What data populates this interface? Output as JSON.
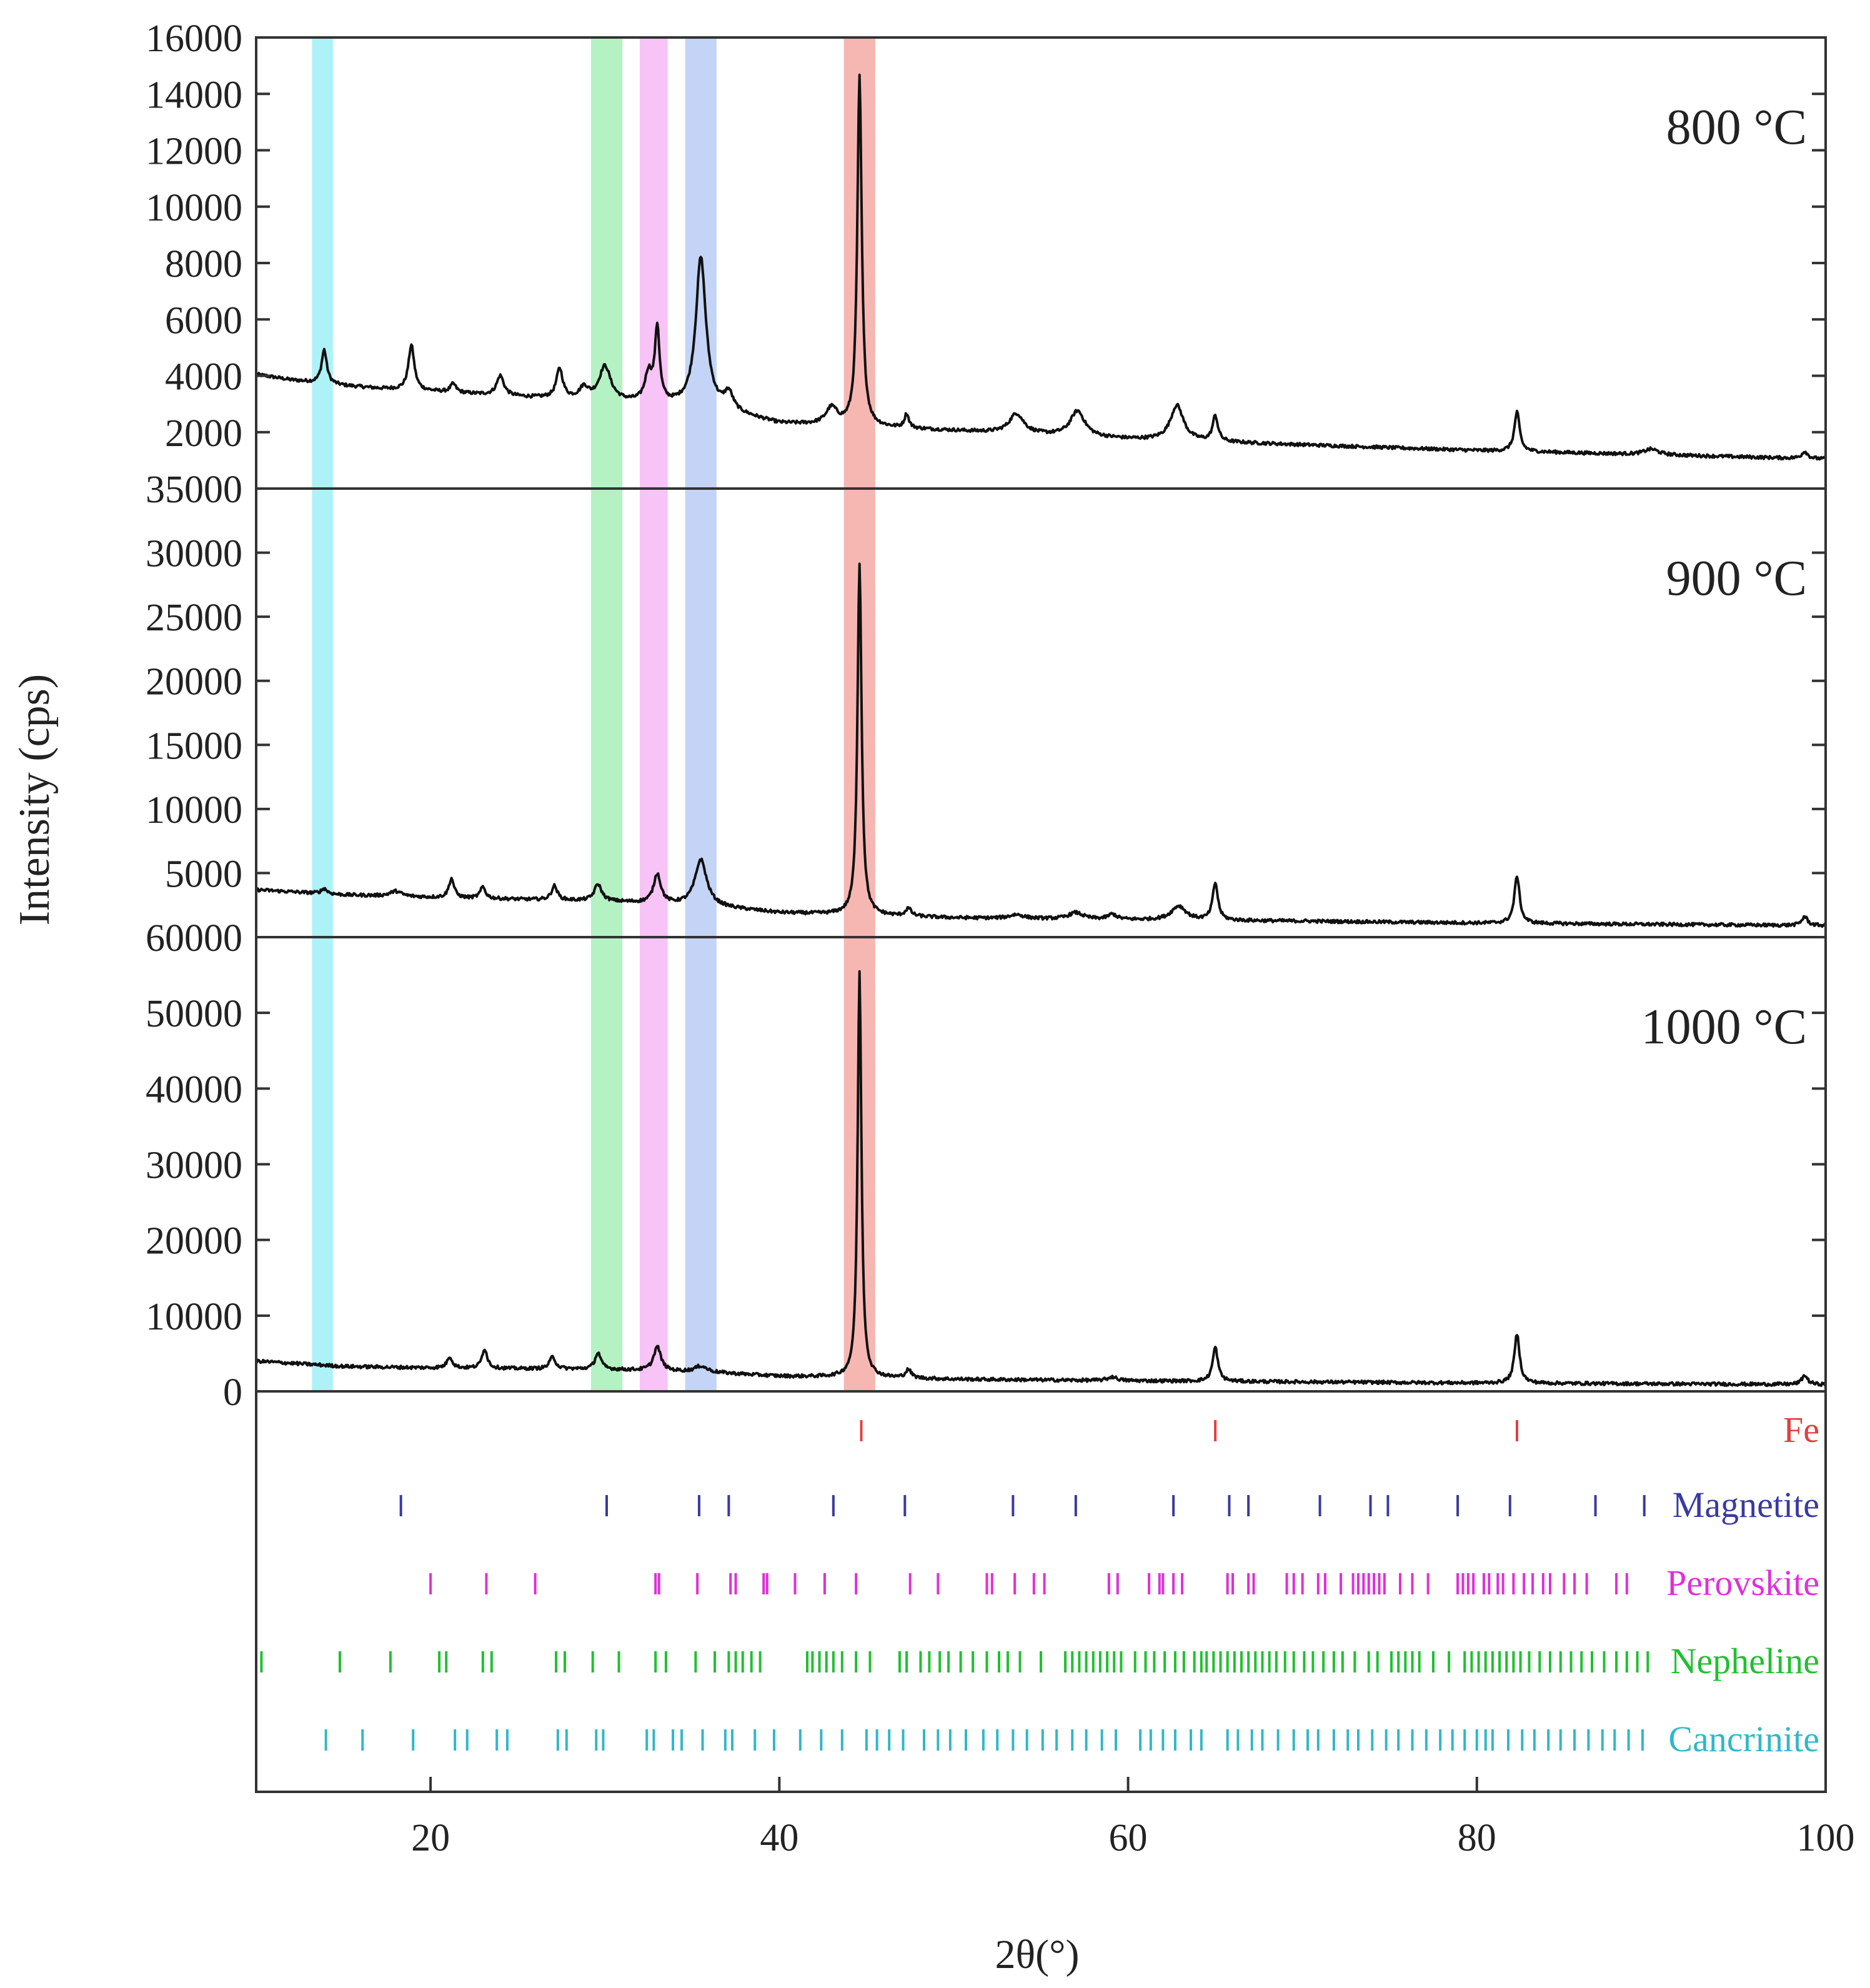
{
  "chart_data": {
    "type": "line",
    "title": "",
    "ylabel": "Intensity (cps)",
    "xlabel": "2θ(°)",
    "xlim": [
      10,
      100
    ],
    "x_ticks": [
      20,
      40,
      60,
      80,
      100
    ],
    "x_tick_labels": [
      "20",
      "40",
      "60",
      "80",
      "100"
    ],
    "highlight_bands": [
      {
        "name": "cancrinite-band",
        "range": [
          13.2,
          14.4
        ],
        "color": "#9ff0f5"
      },
      {
        "name": "nepheline-band",
        "range": [
          29.2,
          31.0
        ],
        "color": "#a8f0b8"
      },
      {
        "name": "perovskite-band",
        "range": [
          32.0,
          33.6
        ],
        "color": "#f7b8f5"
      },
      {
        "name": "magnetite-band",
        "range": [
          34.6,
          36.4
        ],
        "color": "#b8cdf5"
      },
      {
        "name": "fe-band",
        "range": [
          43.7,
          45.5
        ],
        "color": "#f5aaa5"
      }
    ],
    "panels": [
      {
        "name": "800 °C",
        "label": "800 °C",
        "ylim": [
          0,
          16000
        ],
        "y_ticks": [
          2000,
          4000,
          6000,
          8000,
          10000,
          12000,
          14000,
          16000
        ],
        "y_tick_labels": [
          "2000",
          "4000",
          "6000",
          "8000",
          "10000",
          "12000",
          "14000",
          "16000"
        ],
        "background": [
          [
            10,
            4050
          ],
          [
            12,
            3850
          ],
          [
            15,
            3650
          ],
          [
            17,
            3550
          ],
          [
            20,
            3450
          ],
          [
            25,
            3250
          ],
          [
            30,
            3100
          ],
          [
            36,
            2850
          ],
          [
            40,
            2300
          ],
          [
            50,
            2050
          ],
          [
            60,
            1750
          ],
          [
            70,
            1550
          ],
          [
            80,
            1350
          ],
          [
            90,
            1200
          ],
          [
            100,
            1050
          ]
        ],
        "peaks": [
          [
            13.9,
            1200,
            0.18
          ],
          [
            18.9,
            1600,
            0.2
          ],
          [
            21.3,
            300,
            0.2
          ],
          [
            24.0,
            700,
            0.25
          ],
          [
            27.4,
            1050,
            0.22
          ],
          [
            28.8,
            400,
            0.3
          ],
          [
            30.0,
            1200,
            0.4
          ],
          [
            32.5,
            1000,
            0.25
          ],
          [
            33.0,
            2600,
            0.16
          ],
          [
            35.5,
            5300,
            0.35
          ],
          [
            37.1,
            600,
            0.3
          ],
          [
            43.0,
            600,
            0.4
          ],
          [
            44.6,
            12400,
            0.15
          ],
          [
            47.3,
            500,
            0.15
          ],
          [
            53.6,
            700,
            0.5
          ],
          [
            57.1,
            900,
            0.5
          ],
          [
            62.8,
            1250,
            0.45
          ],
          [
            65.0,
            900,
            0.18
          ],
          [
            82.3,
            1400,
            0.18
          ],
          [
            90.0,
            200,
            0.5
          ],
          [
            98.8,
            250,
            0.2
          ]
        ]
      },
      {
        "name": "900 °C",
        "label": "900 °C",
        "ylim": [
          0,
          35000
        ],
        "y_ticks": [
          5000,
          10000,
          15000,
          20000,
          25000,
          30000,
          35000
        ],
        "y_tick_labels": [
          "5000",
          "10000",
          "15000",
          "20000",
          "25000",
          "30000",
          "35000"
        ],
        "background": [
          [
            10,
            3700
          ],
          [
            15,
            3300
          ],
          [
            20,
            3100
          ],
          [
            30,
            2800
          ],
          [
            36,
            2400
          ],
          [
            40,
            1900
          ],
          [
            50,
            1500
          ],
          [
            60,
            1350
          ],
          [
            70,
            1250
          ],
          [
            80,
            1100
          ],
          [
            90,
            1000
          ],
          [
            100,
            900
          ]
        ],
        "peaks": [
          [
            13.9,
            400,
            0.2
          ],
          [
            18.0,
            400,
            0.4
          ],
          [
            21.2,
            1500,
            0.18
          ],
          [
            23.0,
            900,
            0.18
          ],
          [
            27.1,
            1100,
            0.2
          ],
          [
            29.6,
            1300,
            0.25
          ],
          [
            33.0,
            2300,
            0.25
          ],
          [
            35.5,
            3600,
            0.4
          ],
          [
            44.6,
            27500,
            0.14
          ],
          [
            47.4,
            600,
            0.2
          ],
          [
            53.6,
            300,
            0.5
          ],
          [
            57.0,
            500,
            0.5
          ],
          [
            59.1,
            400,
            0.3
          ],
          [
            62.9,
            1100,
            0.5
          ],
          [
            65.0,
            2900,
            0.18
          ],
          [
            82.3,
            3700,
            0.18
          ],
          [
            98.8,
            700,
            0.2
          ]
        ]
      },
      {
        "name": "1000 °C",
        "label": "1000 °C",
        "ylim": [
          0,
          60000
        ],
        "y_ticks": [
          0,
          10000,
          20000,
          30000,
          40000,
          50000,
          60000
        ],
        "y_tick_labels": [
          "0",
          "10000",
          "20000",
          "30000",
          "40000",
          "50000",
          "60000"
        ],
        "background": [
          [
            10,
            4000
          ],
          [
            15,
            3300
          ],
          [
            20,
            3100
          ],
          [
            30,
            2900
          ],
          [
            36,
            2500
          ],
          [
            40,
            2000
          ],
          [
            50,
            1600
          ],
          [
            60,
            1400
          ],
          [
            70,
            1250
          ],
          [
            80,
            1100
          ],
          [
            90,
            1000
          ],
          [
            100,
            900
          ]
        ],
        "peaks": [
          [
            21.1,
            1500,
            0.18
          ],
          [
            23.1,
            2600,
            0.18
          ],
          [
            27.0,
            1600,
            0.2
          ],
          [
            29.6,
            2200,
            0.2
          ],
          [
            33.0,
            3200,
            0.25
          ],
          [
            35.5,
            800,
            0.4
          ],
          [
            44.6,
            53500,
            0.13
          ],
          [
            47.4,
            1100,
            0.2
          ],
          [
            59.1,
            500,
            0.3
          ],
          [
            65.0,
            4500,
            0.18
          ],
          [
            82.3,
            6500,
            0.18
          ],
          [
            98.8,
            1200,
            0.2
          ]
        ]
      }
    ],
    "reference_phases": [
      {
        "name": "Fe",
        "color": "#e04040",
        "positions": [
          44.7,
          65.0,
          82.3
        ]
      },
      {
        "name": "Magnetite",
        "color": "#3a3aa0",
        "positions": [
          18.3,
          30.1,
          35.4,
          37.1,
          43.1,
          47.2,
          53.4,
          57.0,
          62.6,
          65.8,
          66.9,
          71.0,
          73.9,
          74.9,
          78.9,
          81.9,
          86.8,
          89.6
        ]
      },
      {
        "name": "Perovskite",
        "color": "#e030d8",
        "positions": [
          20.0,
          23.2,
          26.0,
          32.9,
          33.1,
          35.3,
          37.2,
          37.5,
          39.1,
          39.3,
          40.9,
          42.6,
          44.4,
          47.5,
          49.1,
          51.9,
          52.2,
          53.5,
          54.6,
          55.2,
          58.9,
          59.4,
          61.2,
          61.8,
          62.0,
          62.6,
          63.1,
          65.7,
          66.0,
          66.9,
          67.2,
          69.1,
          69.5,
          70.0,
          70.9,
          71.3,
          72.2,
          72.9,
          73.2,
          73.5,
          73.8,
          74.1,
          74.4,
          74.7,
          75.6,
          76.3,
          77.2,
          78.9,
          79.2,
          79.5,
          79.8,
          80.4,
          80.7,
          81.2,
          81.5,
          82.1,
          82.7,
          83.2,
          83.8,
          84.2,
          85.0,
          85.6,
          86.3,
          88.0,
          88.6
        ]
      },
      {
        "name": "Nepheline",
        "color": "#20c030",
        "positions": [
          10.3,
          14.8,
          17.7,
          20.5,
          20.9,
          23.0,
          23.5,
          27.2,
          27.7,
          29.3,
          30.8,
          32.9,
          33.5,
          35.2,
          36.3,
          37.1,
          37.5,
          37.9,
          38.4,
          38.9,
          41.6,
          41.9,
          42.3,
          42.7,
          43.1,
          43.6,
          44.4,
          45.2,
          46.9,
          47.3,
          48.1,
          48.6,
          49.2,
          49.7,
          50.4,
          51.1,
          51.9,
          52.6,
          53.1,
          53.8,
          55.0,
          56.4,
          56.8,
          57.2,
          57.6,
          58.0,
          58.4,
          58.8,
          59.2,
          59.6,
          60.4,
          61.0,
          61.5,
          62.1,
          62.7,
          63.2,
          63.8,
          64.2,
          64.5,
          64.9,
          65.3,
          65.7,
          66.1,
          66.5,
          66.9,
          67.3,
          67.7,
          68.1,
          68.5,
          69.0,
          69.5,
          70.1,
          70.6,
          71.2,
          71.8,
          72.3,
          73.0,
          73.8,
          74.3,
          75.1,
          75.5,
          75.9,
          76.3,
          76.7,
          77.5,
          78.4,
          79.3,
          79.7,
          80.1,
          80.5,
          80.9,
          81.3,
          81.7,
          82.1,
          82.5,
          83.0,
          83.6,
          84.2,
          84.8,
          85.4,
          86.0,
          86.6,
          87.3,
          88.0,
          88.6,
          89.2,
          89.8
        ]
      },
      {
        "name": "Cancrinite",
        "color": "#30b8c8",
        "positions": [
          14.0,
          16.1,
          19.0,
          21.4,
          22.1,
          23.8,
          24.4,
          27.3,
          27.8,
          29.5,
          29.9,
          32.4,
          32.8,
          33.9,
          34.4,
          35.6,
          36.9,
          37.3,
          38.6,
          39.7,
          41.2,
          42.4,
          43.6,
          45.0,
          45.6,
          46.3,
          47.1,
          48.3,
          49.1,
          49.8,
          50.7,
          51.7,
          52.5,
          53.4,
          54.2,
          55.1,
          55.9,
          56.8,
          57.6,
          58.5,
          59.3,
          60.7,
          61.3,
          62.0,
          62.7,
          63.6,
          64.2,
          65.7,
          66.3,
          67.1,
          67.7,
          68.6,
          69.5,
          70.3,
          70.9,
          71.8,
          72.6,
          73.2,
          74.0,
          74.8,
          75.5,
          76.3,
          77.1,
          77.9,
          78.6,
          79.3,
          80.0,
          80.5,
          80.9,
          81.8,
          82.6,
          83.3,
          84.1,
          84.8,
          85.6,
          86.4,
          87.2,
          87.9,
          88.7,
          89.5
        ]
      }
    ]
  }
}
